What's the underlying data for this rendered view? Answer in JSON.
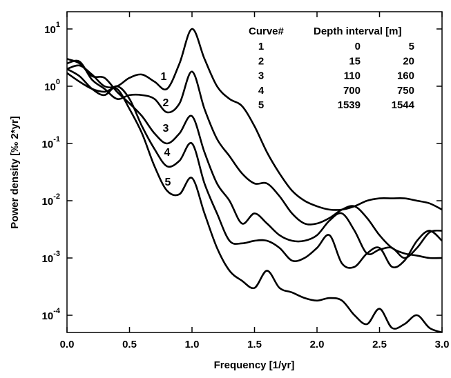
{
  "chart_data": {
    "type": "line",
    "log_y": true,
    "line_width": 2.6,
    "x_label": "Frequency [1/yr]",
    "y_label": "Power density [‰ 2*yr]",
    "x": [
      0,
      0.1,
      0.2,
      0.3,
      0.4,
      0.5,
      0.6,
      0.7,
      0.8,
      0.9,
      1.0,
      1.1,
      1.2,
      1.3,
      1.4,
      1.5,
      1.6,
      1.7,
      1.8,
      1.9,
      2.0,
      2.1,
      2.2,
      2.3,
      2.4,
      2.5,
      2.6,
      2.7,
      2.8,
      2.9,
      3.0
    ],
    "series": [
      {
        "name": "1",
        "color": "#000000",
        "values": [
          2.0,
          2.3,
          1.6,
          1.0,
          1.0,
          1.4,
          1.6,
          1.2,
          0.9,
          2.5,
          10,
          3,
          1.0,
          0.6,
          0.45,
          0.2,
          0.07,
          0.03,
          0.015,
          0.01,
          0.008,
          0.007,
          0.007,
          0.008,
          0.01,
          0.011,
          0.011,
          0.011,
          0.01,
          0.009,
          0.007
        ]
      },
      {
        "name": "2",
        "color": "#000000",
        "values": [
          2.5,
          2.7,
          1.3,
          0.9,
          0.6,
          0.7,
          0.7,
          0.6,
          0.35,
          0.5,
          1.8,
          0.4,
          0.12,
          0.06,
          0.03,
          0.02,
          0.02,
          0.012,
          0.006,
          0.004,
          0.004,
          0.005,
          0.007,
          0.008,
          0.005,
          0.0025,
          0.0015,
          0.0012,
          0.0011,
          0.001,
          0.001
        ]
      },
      {
        "name": "3",
        "color": "#000000",
        "values": [
          3.0,
          2.5,
          1.5,
          1.4,
          0.8,
          0.5,
          0.3,
          0.15,
          0.1,
          0.15,
          0.3,
          0.07,
          0.02,
          0.01,
          0.004,
          0.006,
          0.004,
          0.0025,
          0.002,
          0.002,
          0.0025,
          0.0045,
          0.006,
          0.003,
          0.0012,
          0.0014,
          0.0015,
          0.001,
          0.0015,
          0.0028,
          0.003
        ]
      },
      {
        "name": "4",
        "color": "#000000",
        "values": [
          2.0,
          1.5,
          0.9,
          0.7,
          1.0,
          0.6,
          0.2,
          0.08,
          0.04,
          0.05,
          0.1,
          0.02,
          0.006,
          0.002,
          0.0018,
          0.002,
          0.002,
          0.0015,
          0.0009,
          0.001,
          0.0015,
          0.0025,
          0.0008,
          0.0007,
          0.0012,
          0.0015,
          0.0007,
          0.0009,
          0.002,
          0.003,
          0.002
        ]
      },
      {
        "name": "5",
        "color": "#000000",
        "values": [
          1.7,
          1.2,
          0.9,
          0.8,
          0.9,
          0.4,
          0.15,
          0.04,
          0.015,
          0.013,
          0.025,
          0.006,
          0.0015,
          0.0006,
          0.0004,
          0.0003,
          0.0006,
          0.0003,
          0.00025,
          0.0002,
          0.00018,
          0.0002,
          0.00018,
          0.0001,
          7e-05,
          0.00013,
          6e-05,
          7e-05,
          0.0001,
          6e-05,
          5e-05
        ]
      }
    ],
    "xlim": [
      0,
      3
    ],
    "xticks": [
      {
        "value": 0,
        "label": "0.0"
      },
      {
        "value": 0.5,
        "label": "0.5"
      },
      {
        "value": 1,
        "label": "1.0"
      },
      {
        "value": 1.5,
        "label": "1.5"
      },
      {
        "value": 2,
        "label": "2.0"
      },
      {
        "value": 2.5,
        "label": "2.5"
      },
      {
        "value": 3,
        "label": "3.0"
      }
    ],
    "ylim": [
      5e-05,
      20
    ],
    "yticks": [
      {
        "value": 0.0001,
        "label": "10",
        "exponent": "-4"
      },
      {
        "value": 0.001,
        "label": "10",
        "exponent": "-3"
      },
      {
        "value": 0.01,
        "label": "10",
        "exponent": "-2"
      },
      {
        "value": 0.1,
        "label": "10",
        "exponent": "-1"
      },
      {
        "value": 1,
        "label": "10",
        "exponent": "0"
      },
      {
        "value": 10,
        "label": "10",
        "exponent": "1"
      }
    ],
    "legend_table": {
      "headers": [
        "Curve#",
        "Depth interval [m]"
      ],
      "rows": [
        [
          "1",
          "0",
          "5"
        ],
        [
          "2",
          "15",
          "20"
        ],
        [
          "3",
          "110",
          "160"
        ],
        [
          "4",
          "700",
          "750"
        ],
        [
          "5",
          "1539",
          "1544"
        ]
      ]
    }
  }
}
